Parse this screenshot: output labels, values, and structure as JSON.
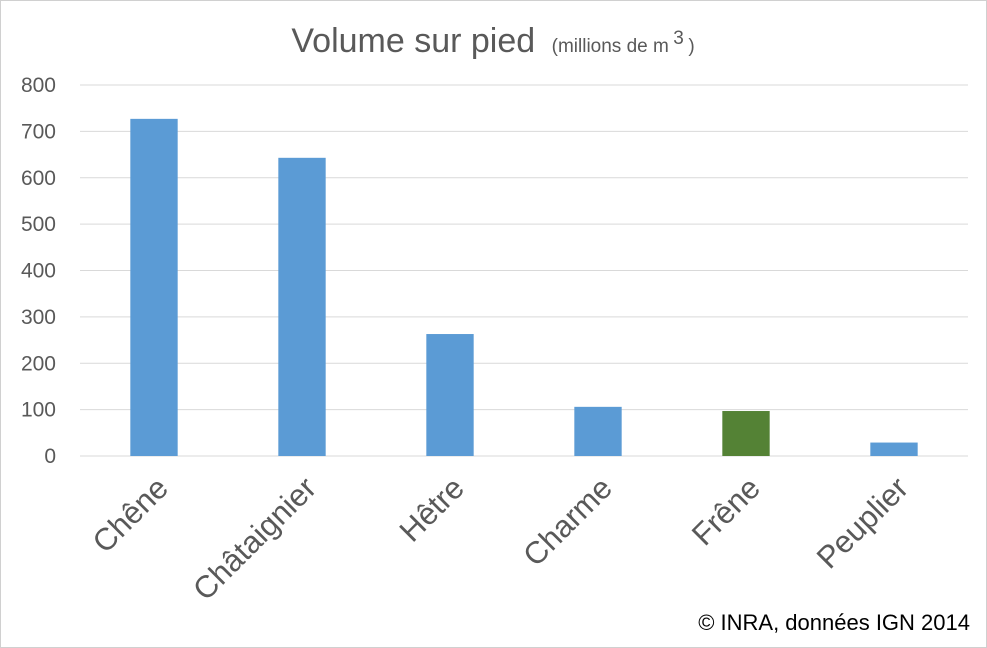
{
  "chart_data": {
    "type": "bar",
    "title": "Volume sur pied",
    "unit_prefix": "(millions de m",
    "unit_superscript": "3",
    "unit_suffix": ")",
    "categories": [
      "Chêne",
      "Châtaignier",
      "Hêtre",
      "Charme",
      "Frêne",
      "Peuplier"
    ],
    "values": [
      727,
      643,
      263,
      106,
      97,
      29
    ],
    "bar_colors": [
      "#5b9bd5",
      "#5b9bd5",
      "#5b9bd5",
      "#5b9bd5",
      "#548235",
      "#5b9bd5"
    ],
    "ylim": [
      0,
      800
    ],
    "yticks": [
      "0",
      "100",
      "200",
      "300",
      "400",
      "500",
      "600",
      "700",
      "800"
    ],
    "grid": true,
    "legend": "none",
    "gridline_color": "#d9d9d9"
  },
  "credit": "© INRA, données IGN 2014"
}
